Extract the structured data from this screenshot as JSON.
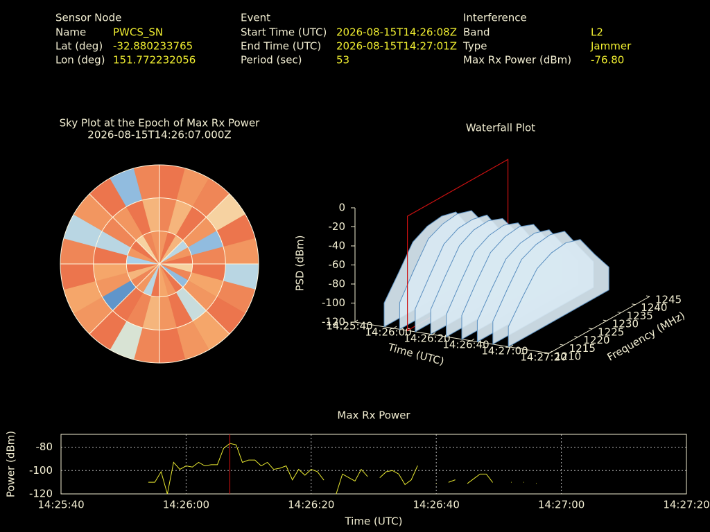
{
  "header": {
    "columns": [
      {
        "title": "Sensor Node",
        "rows": [
          {
            "label": "Name",
            "value": "PWCS_SN"
          },
          {
            "label": "Lat (deg)",
            "value": "-32.880233765"
          },
          {
            "label": "Lon (deg)",
            "value": "151.772232056"
          }
        ]
      },
      {
        "title": "Event",
        "rows": [
          {
            "label": "Start Time (UTC)",
            "value": "2026-08-15T14:26:08Z"
          },
          {
            "label": "End Time (UTC)",
            "value": "2026-08-15T14:27:01Z"
          },
          {
            "label": "Period (sec)",
            "value": "53"
          }
        ]
      },
      {
        "title": "Interference",
        "rows": [
          {
            "label": "Band",
            "value": "L2"
          },
          {
            "label": "Type",
            "value": "Jammer"
          },
          {
            "label": "Max Rx Power (dBm)",
            "value": "-76.80"
          }
        ]
      }
    ]
  },
  "chart_data": [
    {
      "type": "sky",
      "title": "Sky Plot at the Epoch of Max Rx Power",
      "subtitle": "2026-08-15T14:26:07.000Z",
      "rlim": [
        0,
        90
      ],
      "rticks": [
        30,
        60,
        90
      ],
      "thetaticks": [
        0,
        45,
        90,
        135,
        180,
        225,
        270,
        315
      ],
      "clim": [
        0,
        1
      ],
      "colormap": [
        "#2f6db5",
        "#a9d0ea",
        "#f7efc6",
        "#f5a66a",
        "#e6553a"
      ],
      "values": [
        [
          0.8,
          0.9,
          0.7,
          0.3,
          0.8,
          0.9,
          0.6,
          0.85,
          0.2,
          0.9,
          0.8,
          0.75,
          0.9,
          0.3,
          0.8,
          0.85,
          0.7,
          0.9,
          0.25,
          0.8,
          0.9,
          0.6,
          0.85,
          0.8
        ],
        [
          0.85,
          0.7,
          0.9,
          0.8,
          0.2,
          0.85,
          0.9,
          0.75,
          0.8,
          0.35,
          0.9,
          0.8,
          0.7,
          0.85,
          0.9,
          0.1,
          0.8,
          0.75,
          0.9,
          0.3,
          0.85,
          0.8,
          0.9,
          0.7
        ],
        [
          0.9,
          0.8,
          0.85,
          0.6,
          0.9,
          0.8,
          0.3,
          0.85,
          0.9,
          0.75,
          0.8,
          0.9,
          0.85,
          0.4,
          0.9,
          0.8,
          0.75,
          0.9,
          0.85,
          0.3,
          0.8,
          0.9,
          0.2,
          0.85
        ]
      ]
    },
    {
      "type": "waterfall",
      "title": "Waterfall Plot",
      "x": [
        "14:25:55",
        "14:26:03",
        "14:26:11",
        "14:26:19",
        "14:26:27",
        "14:26:35",
        "14:26:43",
        "14:26:51",
        "14:26:59"
      ],
      "xlim": [
        "14:25:40",
        "14:27:20"
      ],
      "xticks": [
        "14:25:40",
        "14:26:00",
        "14:26:20",
        "14:26:40",
        "14:27:00",
        "14:27:20"
      ],
      "xlabel": "Time (UTC)",
      "y": [
        1210,
        1215,
        1220,
        1225,
        1230,
        1235,
        1240,
        1245
      ],
      "ylim": [
        1210,
        1245
      ],
      "yticks": [
        1210,
        1215,
        1220,
        1225,
        1230,
        1235,
        1240,
        1245
      ],
      "ylabel": "Frequency (MHz)",
      "zlim": [
        -120,
        0
      ],
      "zticks": [
        0,
        -20,
        -40,
        -60,
        -80,
        -100,
        -120
      ],
      "zlabel": "PSD (dBm)",
      "values": [
        [
          -95,
          -72,
          -48,
          -40,
          -38,
          -42,
          -68,
          -92
        ],
        [
          -92,
          -66,
          -42,
          -35,
          -33,
          -38,
          -62,
          -90
        ],
        [
          -96,
          -70,
          -45,
          -37,
          -36,
          -40,
          -66,
          -93
        ],
        [
          -94,
          -68,
          -44,
          -36,
          -35,
          -41,
          -64,
          -91
        ],
        [
          -97,
          -71,
          -47,
          -39,
          -37,
          -43,
          -69,
          -94
        ],
        [
          -95,
          -69,
          -46,
          -38,
          -36,
          -42,
          -67,
          -92
        ],
        [
          -98,
          -73,
          -50,
          -42,
          -40,
          -45,
          -70,
          -95
        ],
        [
          -96,
          -71,
          -48,
          -41,
          -39,
          -44,
          -69,
          -93
        ],
        [
          -99,
          -76,
          -55,
          -47,
          -45,
          -50,
          -74,
          -96
        ]
      ],
      "marker_x": "14:26:07",
      "marker_color": "#cc1111",
      "surface_color": "#d8e8f2",
      "edge_color": "#5a8fc0"
    },
    {
      "type": "line",
      "title": "Max Rx Power",
      "xlabel": "Time (UTC)",
      "ylabel": "Power (dBm)",
      "x": [
        "14:25:54",
        "14:25:55",
        "14:25:56",
        "14:25:57",
        "14:25:58",
        "14:25:59",
        "14:26:00",
        "14:26:01",
        "14:26:02",
        "14:26:03",
        "14:26:04",
        "14:26:05",
        "14:26:06",
        "14:26:07",
        "14:26:08",
        "14:26:09",
        "14:26:10",
        "14:26:11",
        "14:26:12",
        "14:26:13",
        "14:26:14",
        "14:26:15",
        "14:26:16",
        "14:26:17",
        "14:26:18",
        "14:26:19",
        "14:26:20",
        "14:26:21",
        "14:26:22",
        "14:26:23",
        "14:26:24",
        "14:26:25",
        "14:26:26",
        "14:26:27",
        "14:26:28",
        "14:26:29",
        "14:26:30",
        "14:26:31",
        "14:26:32",
        "14:26:33",
        "14:26:34",
        "14:26:35",
        "14:26:36",
        "14:26:37",
        "14:26:38",
        "14:26:39",
        "14:26:40",
        "14:26:41",
        "14:26:42",
        "14:26:43",
        "14:26:44",
        "14:26:45",
        "14:26:46",
        "14:26:47",
        "14:26:48",
        "14:26:49",
        "14:26:50",
        "14:26:51",
        "14:26:52",
        "14:26:53",
        "14:26:54",
        "14:26:55",
        "14:26:56",
        "14:26:57"
      ],
      "values": [
        -110,
        -110,
        -101,
        -120,
        -93,
        -99,
        -96,
        -97,
        -93,
        -96,
        -95,
        -95,
        -81,
        -76.8,
        -78,
        -93,
        -91,
        -91,
        -96,
        -93,
        -99,
        -98,
        -96,
        -108,
        -99,
        -104,
        -99,
        -101,
        -108,
        null,
        -120,
        -103,
        -106,
        -109,
        -99,
        -105,
        null,
        -106,
        -101,
        -100,
        -103,
        -112,
        -108,
        -96,
        null,
        null,
        -111,
        null,
        -110,
        -108,
        null,
        -111,
        -107,
        -103,
        -103,
        -110,
        null,
        null,
        -110,
        null,
        -110,
        null,
        -111,
        null
      ],
      "xlim": [
        "14:25:40",
        "14:27:20"
      ],
      "xticks": [
        "14:25:40",
        "14:26:00",
        "14:26:20",
        "14:26:40",
        "14:27:00",
        "14:27:20"
      ],
      "ylim": [
        -120,
        -69
      ],
      "yticks": [
        -120,
        -100,
        -80
      ],
      "grid": true,
      "color": "#e8e830",
      "marker_x": "14:26:07",
      "marker_color": "#dd1111"
    }
  ]
}
